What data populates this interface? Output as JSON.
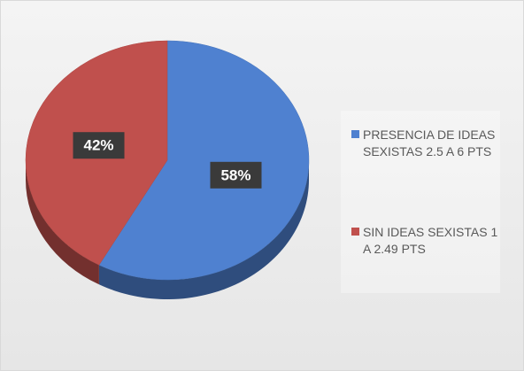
{
  "chart_data": {
    "type": "pie",
    "categories": [
      "PRESENCIA DE IDEAS SEXISTAS 2.5 A 6 PTS",
      "SIN IDEAS SEXISTAS 1 A 2.49 PTS"
    ],
    "values": [
      58,
      42
    ],
    "value_labels": [
      "58%",
      "42%"
    ],
    "colors": [
      "#4f81d0",
      "#c0504d"
    ],
    "legend": "right"
  }
}
